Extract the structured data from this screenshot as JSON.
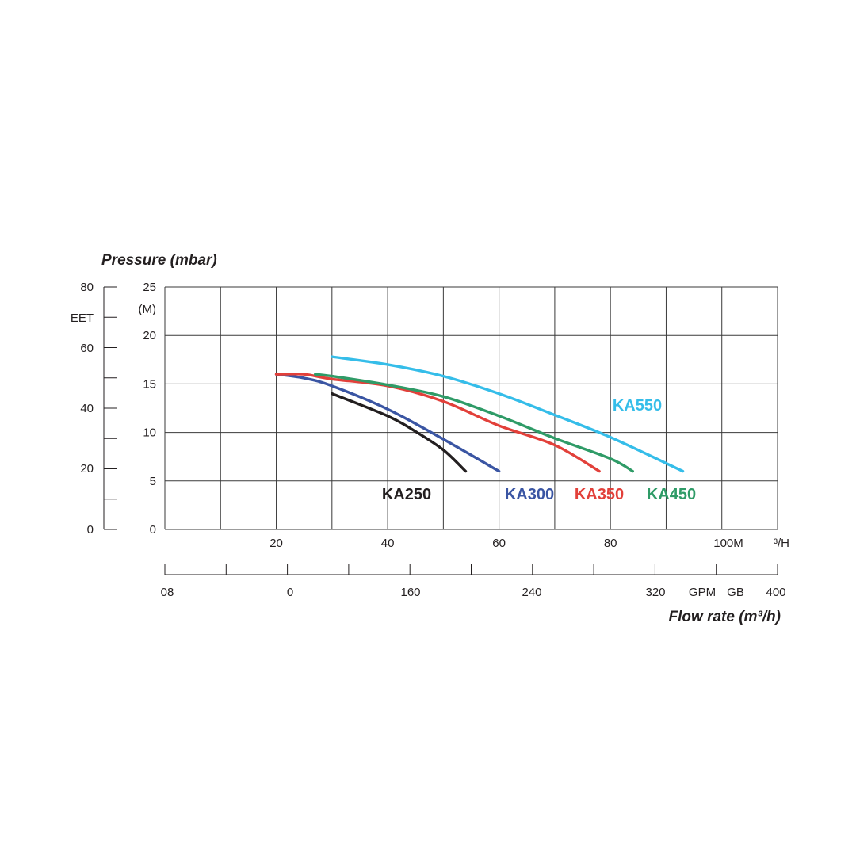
{
  "chart_data": {
    "type": "line",
    "ylabel": "Pressure (mbar)",
    "xlabel": "Flow rate (m³/h)",
    "y_axis": {
      "ticks": [
        0,
        5,
        10,
        15,
        20,
        25
      ],
      "ylim": [
        0,
        25
      ],
      "unit_label": "(M)"
    },
    "y_axis_feet": {
      "unit_label": "EET",
      "ticks": [
        "0",
        "20",
        "40",
        "60",
        "80"
      ]
    },
    "x_axis": {
      "xlim": [
        0,
        110
      ],
      "ticks": [
        20,
        40,
        60,
        80
      ],
      "end_label": "100M",
      "unit_label": "³/H"
    },
    "x_axis_gpm": {
      "labels": [
        "08",
        "0",
        "160",
        "240",
        "320",
        "GPM",
        "GB",
        "400"
      ]
    },
    "grid": true,
    "series": [
      {
        "name": "KA250",
        "color": "#231f20",
        "points": [
          [
            30,
            14
          ],
          [
            40,
            11.7
          ],
          [
            45,
            10.1
          ],
          [
            50,
            8.2
          ],
          [
            54,
            6
          ]
        ]
      },
      {
        "name": "KA300",
        "color": "#3a55a3",
        "points": [
          [
            20,
            16
          ],
          [
            25,
            15.6
          ],
          [
            30,
            14.8
          ],
          [
            40,
            12.4
          ],
          [
            50,
            9.3
          ],
          [
            60,
            6
          ]
        ]
      },
      {
        "name": "KA350",
        "color": "#e2403a",
        "points": [
          [
            20,
            16
          ],
          [
            25,
            16
          ],
          [
            30,
            15.5
          ],
          [
            40,
            14.8
          ],
          [
            50,
            13.2
          ],
          [
            60,
            10.7
          ],
          [
            70,
            8.7
          ],
          [
            78,
            6
          ]
        ]
      },
      {
        "name": "KA450",
        "color": "#2f9b67",
        "points": [
          [
            27,
            16
          ],
          [
            30,
            15.8
          ],
          [
            40,
            14.9
          ],
          [
            50,
            13.7
          ],
          [
            60,
            11.7
          ],
          [
            70,
            9.4
          ],
          [
            80,
            7.3
          ],
          [
            84,
            6
          ]
        ]
      },
      {
        "name": "KA550",
        "color": "#35bde9",
        "points": [
          [
            30,
            17.8
          ],
          [
            40,
            17
          ],
          [
            50,
            15.8
          ],
          [
            60,
            14
          ],
          [
            70,
            11.8
          ],
          [
            80,
            9.5
          ],
          [
            93,
            6
          ]
        ]
      }
    ]
  }
}
